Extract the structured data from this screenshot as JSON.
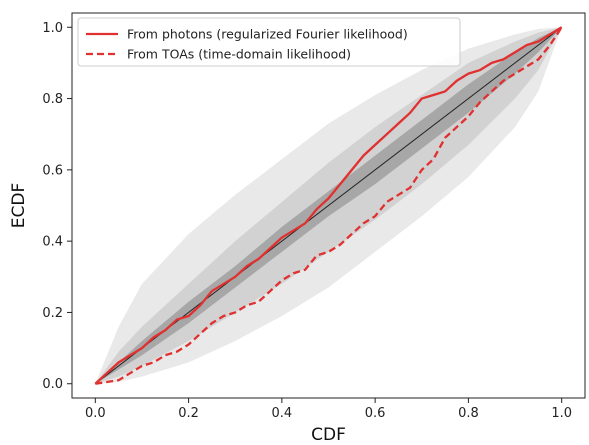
{
  "chart_data": {
    "type": "line",
    "title": "",
    "xlabel": "CDF",
    "ylabel": "ECDF",
    "xlim": [
      -0.05,
      1.05
    ],
    "ylim": [
      -0.04,
      1.04
    ],
    "xticks": [
      0.0,
      0.2,
      0.4,
      0.6,
      0.8,
      1.0
    ],
    "yticks": [
      0.0,
      0.2,
      0.4,
      0.6,
      0.8,
      1.0
    ],
    "xtick_labels": [
      "0.0",
      "0.2",
      "0.4",
      "0.6",
      "0.8",
      "1.0"
    ],
    "ytick_labels": [
      "0.0",
      "0.2",
      "0.4",
      "0.6",
      "0.8",
      "1.0"
    ],
    "grid": false,
    "legend_position": "top-left",
    "diagonal": {
      "x": [
        0,
        1
      ],
      "y": [
        0,
        1
      ],
      "color": "#222222"
    },
    "bands": [
      {
        "level": "outer",
        "color": "#e9e9e9",
        "x": [
          0,
          0.05,
          0.1,
          0.2,
          0.3,
          0.4,
          0.5,
          0.6,
          0.7,
          0.8,
          0.9,
          0.95,
          1.0
        ],
        "lower": [
          0,
          0.005,
          0.02,
          0.06,
          0.12,
          0.19,
          0.27,
          0.37,
          0.47,
          0.58,
          0.72,
          0.82,
          1.0
        ],
        "upper": [
          0,
          0.16,
          0.28,
          0.42,
          0.53,
          0.63,
          0.73,
          0.81,
          0.88,
          0.94,
          0.98,
          0.995,
          1.0
        ]
      },
      {
        "level": "middle",
        "color": "#d2d2d2",
        "x": [
          0,
          0.05,
          0.1,
          0.2,
          0.3,
          0.4,
          0.5,
          0.6,
          0.7,
          0.8,
          0.9,
          0.95,
          1.0
        ],
        "lower": [
          0,
          0.02,
          0.05,
          0.12,
          0.2,
          0.28,
          0.37,
          0.46,
          0.56,
          0.67,
          0.8,
          0.88,
          1.0
        ],
        "upper": [
          0,
          0.09,
          0.16,
          0.28,
          0.4,
          0.51,
          0.62,
          0.72,
          0.81,
          0.9,
          0.96,
          0.985,
          1.0
        ]
      },
      {
        "level": "inner",
        "color": "#a7a7a7",
        "x": [
          0,
          0.05,
          0.1,
          0.2,
          0.3,
          0.4,
          0.5,
          0.6,
          0.7,
          0.8,
          0.9,
          0.95,
          1.0
        ],
        "lower": [
          0,
          0.04,
          0.08,
          0.17,
          0.27,
          0.37,
          0.47,
          0.56,
          0.66,
          0.76,
          0.87,
          0.93,
          1.0
        ],
        "upper": [
          0,
          0.06,
          0.12,
          0.23,
          0.33,
          0.44,
          0.54,
          0.64,
          0.74,
          0.84,
          0.93,
          0.97,
          1.0
        ]
      }
    ],
    "series": [
      {
        "name": "From photons (regularized Fourier likelihood)",
        "color": "#e03030",
        "style": "solid",
        "x": [
          0,
          0.025,
          0.05,
          0.075,
          0.1,
          0.125,
          0.15,
          0.175,
          0.2,
          0.225,
          0.25,
          0.275,
          0.3,
          0.325,
          0.35,
          0.375,
          0.4,
          0.425,
          0.45,
          0.475,
          0.5,
          0.525,
          0.55,
          0.575,
          0.6,
          0.625,
          0.65,
          0.675,
          0.7,
          0.725,
          0.75,
          0.775,
          0.8,
          0.825,
          0.85,
          0.875,
          0.9,
          0.925,
          0.95,
          0.975,
          1.0
        ],
        "y": [
          0,
          0.03,
          0.06,
          0.08,
          0.1,
          0.13,
          0.15,
          0.18,
          0.19,
          0.22,
          0.26,
          0.28,
          0.3,
          0.33,
          0.35,
          0.38,
          0.41,
          0.43,
          0.45,
          0.49,
          0.52,
          0.56,
          0.6,
          0.64,
          0.67,
          0.7,
          0.73,
          0.76,
          0.8,
          0.81,
          0.82,
          0.85,
          0.87,
          0.88,
          0.9,
          0.91,
          0.93,
          0.95,
          0.96,
          0.98,
          1.0
        ]
      },
      {
        "name": "From TOAs (time-domain likelihood)",
        "color": "#e03030",
        "style": "dashed",
        "x": [
          0,
          0.025,
          0.05,
          0.075,
          0.1,
          0.125,
          0.15,
          0.175,
          0.2,
          0.225,
          0.25,
          0.275,
          0.3,
          0.325,
          0.35,
          0.375,
          0.4,
          0.425,
          0.45,
          0.475,
          0.5,
          0.525,
          0.55,
          0.575,
          0.6,
          0.625,
          0.65,
          0.675,
          0.7,
          0.725,
          0.75,
          0.775,
          0.8,
          0.825,
          0.85,
          0.875,
          0.9,
          0.925,
          0.95,
          0.975,
          1.0
        ],
        "y": [
          0,
          0.005,
          0.01,
          0.03,
          0.05,
          0.06,
          0.08,
          0.09,
          0.11,
          0.14,
          0.17,
          0.19,
          0.2,
          0.22,
          0.23,
          0.26,
          0.29,
          0.31,
          0.32,
          0.36,
          0.37,
          0.39,
          0.42,
          0.45,
          0.47,
          0.51,
          0.53,
          0.55,
          0.6,
          0.63,
          0.69,
          0.72,
          0.75,
          0.79,
          0.82,
          0.85,
          0.87,
          0.89,
          0.91,
          0.95,
          1.0
        ]
      }
    ]
  }
}
